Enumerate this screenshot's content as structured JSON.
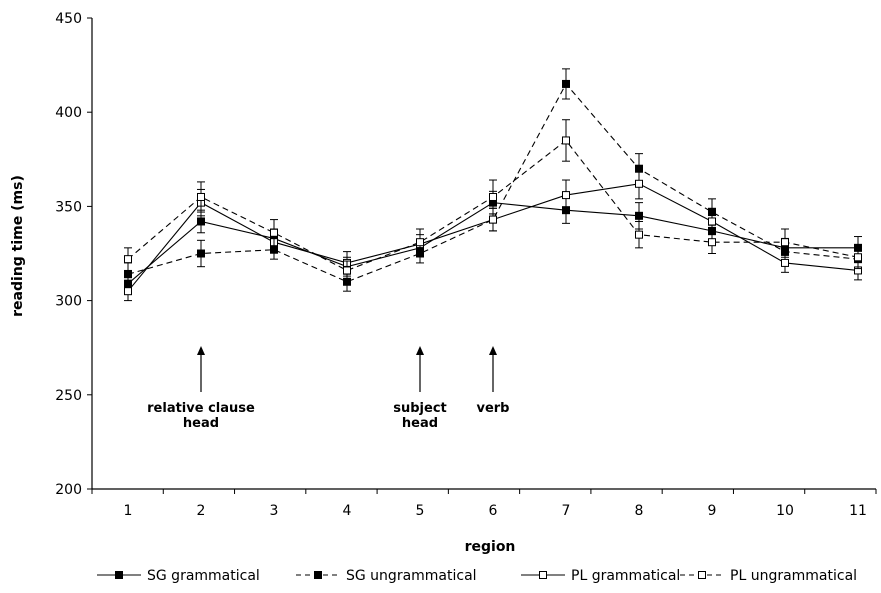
{
  "chart_data": {
    "type": "line",
    "xlabel": "region",
    "ylabel": "reading time (ms)",
    "ylim": [
      200,
      450
    ],
    "yticks": [
      200,
      250,
      300,
      350,
      400,
      450
    ],
    "x": [
      1,
      2,
      3,
      4,
      5,
      6,
      7,
      8,
      9,
      10,
      11
    ],
    "grid": false,
    "legend_position": "bottom",
    "series": [
      {
        "name": "SG grammatical",
        "marker": "filled-square",
        "line": "solid",
        "values": [
          309,
          342,
          333,
          318,
          328,
          352,
          348,
          345,
          337,
          328,
          328
        ],
        "errors": [
          5,
          6,
          5,
          5,
          4,
          6,
          7,
          7,
          6,
          5,
          6
        ]
      },
      {
        "name": "SG ungrammatical",
        "marker": "filled-square",
        "line": "dashed",
        "values": [
          314,
          325,
          327,
          310,
          325,
          343,
          415,
          370,
          347,
          326,
          322
        ],
        "errors": [
          6,
          7,
          5,
          5,
          5,
          6,
          8,
          8,
          7,
          5,
          5
        ]
      },
      {
        "name": "PL grammatical",
        "marker": "open-square",
        "line": "solid",
        "values": [
          305,
          352,
          331,
          320,
          330,
          343,
          356,
          362,
          342,
          320,
          316
        ],
        "errors": [
          5,
          7,
          5,
          6,
          5,
          6,
          8,
          8,
          7,
          5,
          5
        ]
      },
      {
        "name": "PL ungrammatical",
        "marker": "open-square",
        "line": "dashed",
        "values": [
          322,
          355,
          336,
          316,
          331,
          355,
          385,
          335,
          331,
          331,
          323
        ],
        "errors": [
          6,
          8,
          7,
          5,
          7,
          9,
          11,
          7,
          6,
          7,
          6
        ]
      }
    ],
    "annotations": [
      {
        "lines": [
          "relative clause",
          "head"
        ],
        "x": 2
      },
      {
        "lines": [
          "subject",
          "head"
        ],
        "x": 5
      },
      {
        "lines": [
          "verb"
        ],
        "x": 6
      }
    ]
  }
}
